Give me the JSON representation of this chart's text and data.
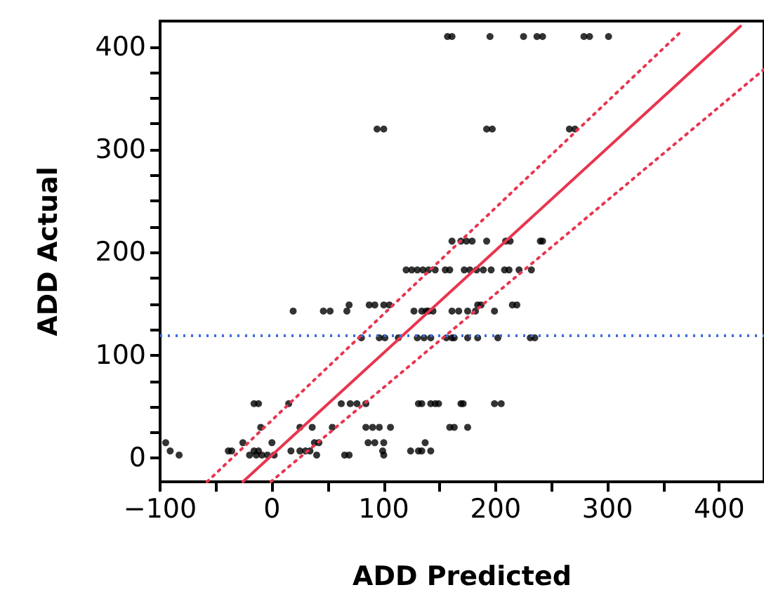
{
  "chart_data": {
    "type": "scatter",
    "xlabel": "ADD Predicted",
    "ylabel": "ADD Actual",
    "xlim": [
      -100,
      440
    ],
    "ylim": [
      -23,
      425
    ],
    "xticks": [
      -100,
      {
        "value": -50,
        "label": null
      },
      0,
      {
        "value": 50,
        "label": null
      },
      100,
      {
        "value": 150,
        "label": null
      },
      200,
      {
        "value": 250,
        "label": null
      },
      300,
      {
        "value": 350,
        "label": null
      },
      400
    ],
    "yticks": [
      0,
      {
        "value": 25,
        "label": null
      },
      {
        "value": 50,
        "label": null
      },
      {
        "value": 75,
        "label": null
      },
      100,
      {
        "value": 125,
        "label": null
      },
      {
        "value": 150,
        "label": null
      },
      {
        "value": 175,
        "label": null
      },
      200,
      {
        "value": 225,
        "label": null
      },
      {
        "value": 250,
        "label": null
      },
      {
        "value": 275,
        "label": null
      },
      300,
      {
        "value": 325,
        "label": null
      },
      {
        "value": 350,
        "label": null
      },
      {
        "value": 375,
        "label": null
      },
      400
    ],
    "grid": false,
    "ref_lines": [
      {
        "axis": "y",
        "value": 119,
        "color": "#3a6fe0",
        "line_style": "dotted"
      }
    ],
    "series": [
      {
        "color": "#000000",
        "marker": "circle",
        "x": [
          157,
          161,
          195,
          225,
          237,
          242,
          279,
          284,
          301,
          94,
          100,
          192,
          197,
          266,
          271,
          161,
          169,
          174,
          179,
          192,
          209,
          213,
          240,
          242,
          120,
          125,
          130,
          135,
          140,
          146,
          155,
          159,
          172,
          177,
          183,
          189,
          196,
          208,
          212,
          221,
          232,
          69,
          87,
          92,
          100,
          105,
          184,
          187,
          215,
          219,
          19,
          46,
          52,
          67,
          127,
          134,
          138,
          140,
          144,
          161,
          167,
          175,
          182,
          199,
          80,
          96,
          101,
          113,
          130,
          136,
          142,
          156,
          161,
          163,
          175,
          184,
          202,
          231,
          235,
          -16,
          -12,
          15,
          62,
          70,
          76,
          84,
          131,
          134,
          142,
          146,
          149,
          169,
          171,
          199,
          205,
          -10,
          25,
          36,
          54,
          84,
          90,
          96,
          106,
          159,
          163,
          175,
          -95,
          -26,
          0,
          38,
          42,
          86,
          92,
          100,
          137,
          -91,
          -39,
          -36,
          -16,
          -12,
          17,
          25,
          30,
          34,
          99,
          124,
          131,
          134,
          142,
          -83,
          -20,
          -14,
          -9,
          -4,
          2,
          40,
          65,
          69,
          100
        ],
        "values": [
          410,
          410,
          410,
          410,
          410,
          410,
          410,
          410,
          410,
          320,
          320,
          320,
          320,
          320,
          320,
          211,
          211,
          211,
          211,
          211,
          211,
          211,
          211,
          211,
          183,
          183,
          183,
          183,
          183,
          183,
          183,
          183,
          183,
          183,
          183,
          183,
          183,
          183,
          183,
          183,
          183,
          149,
          149,
          149,
          149,
          149,
          149,
          149,
          149,
          149,
          143,
          143,
          143,
          143,
          143,
          143,
          143,
          143,
          143,
          143,
          143,
          143,
          143,
          143,
          117,
          117,
          117,
          117,
          117,
          117,
          117,
          117,
          117,
          117,
          117,
          117,
          117,
          117,
          117,
          53,
          53,
          53,
          53,
          53,
          53,
          53,
          53,
          53,
          53,
          53,
          53,
          53,
          53,
          53,
          53,
          30,
          30,
          30,
          30,
          30,
          30,
          30,
          30,
          30,
          30,
          30,
          15,
          15,
          15,
          15,
          15,
          15,
          15,
          15,
          15,
          7,
          7,
          7,
          7,
          7,
          7,
          7,
          7,
          7,
          7,
          7,
          7,
          7,
          7,
          3,
          3,
          3,
          3,
          3,
          3,
          3,
          3,
          3,
          3
        ]
      },
      {
        "type": "line",
        "color": "#e8354f",
        "marker": "none",
        "line_style": "solid",
        "x": [
          -26,
          419
        ],
        "values": [
          -23,
          420
        ]
      },
      {
        "type": "line",
        "color": "#e8354f",
        "marker": "none",
        "line_style": "dotted",
        "x": [
          -58,
          367
        ],
        "values": [
          -23,
          416
        ]
      },
      {
        "type": "line",
        "color": "#e8354f",
        "marker": "none",
        "line_style": "dotted",
        "x": [
          -1,
          440
        ],
        "values": [
          -23,
          378
        ]
      }
    ]
  }
}
